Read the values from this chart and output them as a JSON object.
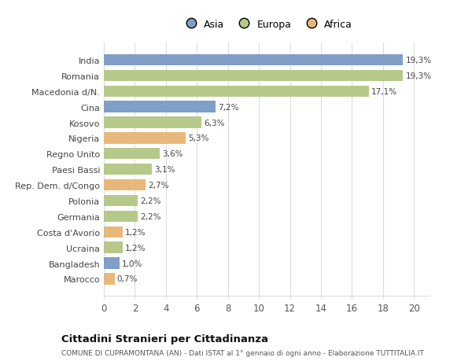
{
  "countries": [
    "India",
    "Romania",
    "Macedonia d/N.",
    "Cina",
    "Kosovo",
    "Nigeria",
    "Regno Unito",
    "Paesi Bassi",
    "Rep. Dem. d/Congo",
    "Polonia",
    "Germania",
    "Costa d'Avorio",
    "Ucraina",
    "Bangladesh",
    "Marocco"
  ],
  "values": [
    19.3,
    19.3,
    17.1,
    7.2,
    6.3,
    5.3,
    3.6,
    3.1,
    2.7,
    2.2,
    2.2,
    1.2,
    1.2,
    1.0,
    0.7
  ],
  "labels": [
    "19,3%",
    "19,3%",
    "17,1%",
    "7,2%",
    "6,3%",
    "5,3%",
    "3,6%",
    "3,1%",
    "2,7%",
    "2,2%",
    "2,2%",
    "1,2%",
    "1,2%",
    "1,0%",
    "0,7%"
  ],
  "continents": [
    "Asia",
    "Europa",
    "Europa",
    "Asia",
    "Europa",
    "Africa",
    "Europa",
    "Europa",
    "Africa",
    "Europa",
    "Europa",
    "Africa",
    "Europa",
    "Asia",
    "Africa"
  ],
  "colors": {
    "Asia": "#7f9fc6",
    "Europa": "#b5c98a",
    "Africa": "#e8b87a"
  },
  "legend_labels": [
    "Asia",
    "Europa",
    "Africa"
  ],
  "legend_colors": [
    "#7f9fc6",
    "#b5c98a",
    "#e8b87a"
  ],
  "title": "Cittadini Stranieri per Cittadinanza",
  "subtitle": "COMUNE DI CUPRAMONTANA (AN) - Dati ISTAT al 1° gennaio di ogni anno - Elaborazione TUTTITALIA.IT",
  "xlim": [
    0,
    21
  ],
  "xticks": [
    0,
    2,
    4,
    6,
    8,
    10,
    12,
    14,
    16,
    18,
    20
  ],
  "bg_color": "#ffffff",
  "bar_height": 0.72,
  "grid_color": "#dddddd"
}
